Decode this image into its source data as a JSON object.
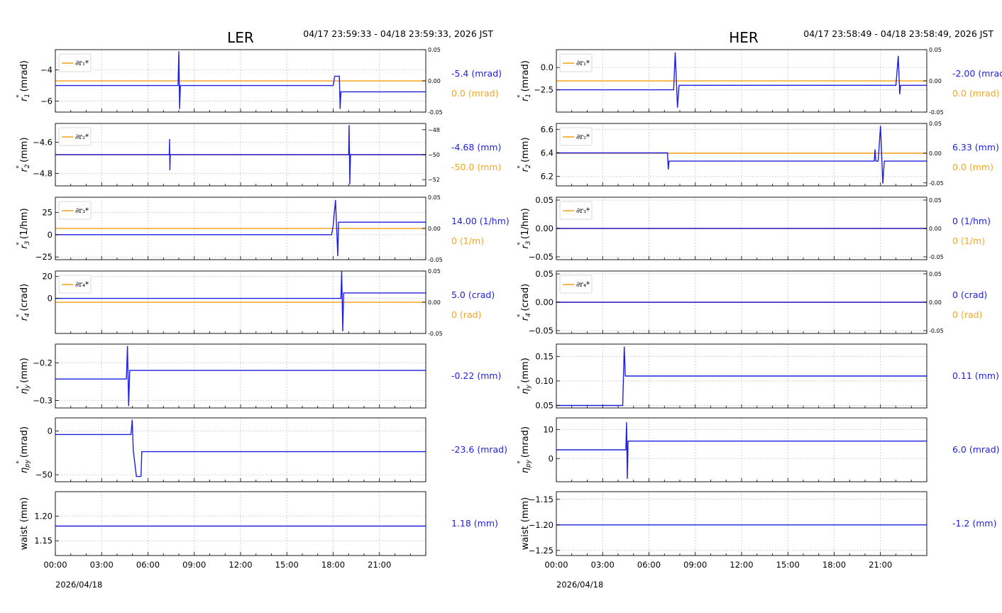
{
  "colors": {
    "blue": "#1f1fe0",
    "orange": "#f5a623",
    "grid": "#c8c8c8"
  },
  "x_ticks": [
    "00:00",
    "03:00",
    "06:00",
    "09:00",
    "12:00",
    "15:00",
    "18:00",
    "21:00"
  ],
  "chart_data": [
    {
      "type": "line",
      "title": "LER",
      "time_range": "04/17 23:59:33 - 04/18 23:59:33, 2026 JST",
      "date_label": "2026/04/18",
      "panels": [
        {
          "ylabel_sym": "r",
          "ylabel_sub": "1",
          "ylabel_unit": "(mrad)",
          "ylim": [
            -6.7,
            -2.7
          ],
          "yticks": [
            -4,
            -6
          ],
          "right": {
            "ylim": [
              -0.05,
              0.05
            ],
            "ticks": [
              0.05,
              0.0,
              -0.05
            ],
            "tick_labels": [
              "0.05",
              "0.00",
              "-0.05"
            ]
          },
          "legend": "∂r₁*",
          "side_blue": "-5.4 (mrad)",
          "side_orange": "0.0 (mrad)",
          "orange": {
            "axis": "right",
            "value": 0.0
          },
          "series": [
            [
              0,
              -5
            ],
            [
              7.95,
              -5
            ],
            [
              8.0,
              -2.8
            ],
            [
              8.05,
              -6.5
            ],
            [
              8.1,
              -5
            ],
            [
              18.0,
              -5
            ],
            [
              18.1,
              -4.4
            ],
            [
              18.4,
              -4.4
            ],
            [
              18.45,
              -6.5
            ],
            [
              18.5,
              -5.4
            ],
            [
              24,
              -5.4
            ]
          ]
        },
        {
          "ylabel_sym": "r",
          "ylabel_sub": "2",
          "ylabel_unit": "(mm)",
          "ylim": [
            -4.88,
            -4.48
          ],
          "yticks": [
            -4.6,
            -4.8
          ],
          "right": {
            "ylim": [
              -52.5,
              -47.5
            ],
            "ticks": [
              -48,
              -50,
              -52
            ],
            "tick_labels": [
              "−48",
              "−50",
              "−52"
            ]
          },
          "legend": "∂r₂*",
          "side_blue": "-4.68 (mm)",
          "side_orange": "-50.0 (mm)",
          "orange": {
            "axis": "right",
            "value": -50.0
          },
          "series": [
            [
              0,
              -4.68
            ],
            [
              7.38,
              -4.68
            ],
            [
              7.4,
              -4.58
            ],
            [
              7.42,
              -4.78
            ],
            [
              7.45,
              -4.68
            ],
            [
              19.0,
              -4.68
            ],
            [
              19.03,
              -4.49
            ],
            [
              19.08,
              -4.87
            ],
            [
              19.12,
              -4.68
            ],
            [
              24,
              -4.68
            ]
          ]
        },
        {
          "ylabel_sym": "r",
          "ylabel_sub": "3",
          "ylabel_unit": "(1/hm)",
          "ylim": [
            -28,
            42
          ],
          "yticks": [
            25,
            0,
            -25
          ],
          "right": {
            "ylim": [
              -0.05,
              0.05
            ],
            "ticks": [
              0.05,
              0.0,
              -0.05
            ],
            "tick_labels": [
              "0.05",
              "0.00",
              "-0.05"
            ]
          },
          "legend": "∂r₃*",
          "side_blue": "14.00 (1/hm)",
          "side_orange": "0 (1/m)",
          "orange": {
            "axis": "right",
            "value": 0.0
          },
          "series": [
            [
              0,
              0
            ],
            [
              17.9,
              0
            ],
            [
              18.0,
              10
            ],
            [
              18.15,
              39
            ],
            [
              18.3,
              -24
            ],
            [
              18.35,
              14
            ],
            [
              24,
              14
            ]
          ]
        },
        {
          "ylabel_sym": "r",
          "ylabel_sub": "4",
          "ylabel_unit": "(crad)",
          "ylim": [
            -32,
            25
          ],
          "yticks": [
            20,
            0
          ],
          "right": {
            "ylim": [
              -0.05,
              0.05
            ],
            "ticks": [
              0.05,
              0.0,
              -0.05
            ],
            "tick_labels": [
              "0.05",
              "0.00",
              "-0.05"
            ]
          },
          "legend": "∂r₄*",
          "side_blue": "5.0 (crad)",
          "side_orange": "0 (rad)",
          "orange": {
            "axis": "right",
            "value": 0.0
          },
          "series": [
            [
              0,
              0
            ],
            [
              18.5,
              0
            ],
            [
              18.55,
              25
            ],
            [
              18.62,
              -30
            ],
            [
              18.68,
              5
            ],
            [
              24,
              5
            ]
          ]
        },
        {
          "ylabel_sym": "η",
          "ylabel_sub": "y",
          "ylabel_unit": "(mm)",
          "ylim": [
            -0.32,
            -0.15
          ],
          "yticks": [
            -0.2,
            -0.3
          ],
          "right": null,
          "legend": "",
          "side_blue": "-0.22 (mm)",
          "side_orange": "",
          "orange": null,
          "series": [
            [
              0,
              -0.243
            ],
            [
              4.6,
              -0.243
            ],
            [
              4.67,
              -0.155
            ],
            [
              4.75,
              -0.315
            ],
            [
              4.82,
              -0.22
            ],
            [
              24,
              -0.22
            ]
          ]
        },
        {
          "ylabel_sym": "η",
          "ylabel_sub": "py",
          "ylabel_unit": "(mrad)",
          "ylim": [
            -58,
            15
          ],
          "yticks": [
            0,
            -50
          ],
          "right": null,
          "legend": "",
          "side_blue": "-23.6 (mrad)",
          "side_orange": "",
          "orange": null,
          "series": [
            [
              0,
              -4
            ],
            [
              4.9,
              -4
            ],
            [
              4.98,
              13
            ],
            [
              5.05,
              -22
            ],
            [
              5.25,
              -52
            ],
            [
              5.55,
              -52
            ],
            [
              5.6,
              -23.6
            ],
            [
              24,
              -23.6
            ]
          ]
        },
        {
          "ylabel_sym": "waist",
          "ylabel_sub": "",
          "ylabel_unit": "(mm)",
          "ylim": [
            1.12,
            1.25
          ],
          "yticks": [
            1.2,
            1.15
          ],
          "right": null,
          "legend": "",
          "side_blue": "1.18 (mm)",
          "side_orange": "",
          "orange": null,
          "series": [
            [
              0,
              1.18
            ],
            [
              24,
              1.18
            ]
          ]
        }
      ]
    },
    {
      "type": "line",
      "title": "HER",
      "time_range": "04/17 23:58:49 - 04/18 23:58:49, 2026 JST",
      "date_label": "2026/04/18",
      "panels": [
        {
          "ylabel_sym": "r",
          "ylabel_sub": "1",
          "ylabel_unit": "(mrad)",
          "ylim": [
            -5.0,
            2.0
          ],
          "yticks": [
            0.0,
            -2.5
          ],
          "right": {
            "ylim": [
              -0.05,
              0.05
            ],
            "ticks": [
              0.05,
              0.0,
              -0.05
            ],
            "tick_labels": [
              "0.05",
              "0.00",
              "-0.05"
            ]
          },
          "legend": "∂r₁*",
          "side_blue": "-2.00 (mrad)",
          "side_orange": "0.0 (mrad)",
          "orange": {
            "axis": "right",
            "value": 0.0
          },
          "series": [
            [
              0,
              -2.5
            ],
            [
              7.6,
              -2.5
            ],
            [
              7.7,
              1.7
            ],
            [
              7.85,
              -4.5
            ],
            [
              7.95,
              -2.0
            ],
            [
              22.0,
              -2.0
            ],
            [
              22.15,
              1.3
            ],
            [
              22.25,
              -3.0
            ],
            [
              22.3,
              -2.0
            ],
            [
              24,
              -2.0
            ]
          ]
        },
        {
          "ylabel_sym": "r",
          "ylabel_sub": "2",
          "ylabel_unit": "(mm)",
          "ylim": [
            6.12,
            6.65
          ],
          "yticks": [
            6.6,
            6.4,
            6.2
          ],
          "right": {
            "ylim": [
              -0.055,
              0.05
            ],
            "ticks": [
              0.05,
              0.0,
              -0.05
            ],
            "tick_labels": [
              "0.05",
              "0.00",
              "-0.05"
            ]
          },
          "legend": "∂r₂*",
          "side_blue": "6.33 (mm)",
          "side_orange": "0.0 (mm)",
          "orange": {
            "axis": "right",
            "value": 0.0
          },
          "series": [
            [
              0,
              6.4
            ],
            [
              7.2,
              6.4
            ],
            [
              7.25,
              6.26
            ],
            [
              7.3,
              6.33
            ],
            [
              20.6,
              6.33
            ],
            [
              20.65,
              6.43
            ],
            [
              20.7,
              6.33
            ],
            [
              20.85,
              6.33
            ],
            [
              21.0,
              6.63
            ],
            [
              21.15,
              6.14
            ],
            [
              21.25,
              6.33
            ],
            [
              24,
              6.33
            ]
          ]
        },
        {
          "ylabel_sym": "r",
          "ylabel_sub": "3",
          "ylabel_unit": "(1/hm)",
          "ylim": [
            -0.055,
            0.055
          ],
          "yticks": [
            0.05,
            0.0,
            -0.05
          ],
          "right": {
            "ylim": [
              -0.055,
              0.055
            ],
            "ticks": [
              0.05,
              0.0,
              -0.05
            ],
            "tick_labels": [
              "0.05",
              "0.00",
              "-0.05"
            ]
          },
          "legend": "∂r₃*",
          "side_blue": "0 (1/hm)",
          "side_orange": "0 (1/m)",
          "orange": {
            "axis": "right",
            "value": 0.0
          },
          "series": [
            [
              0,
              0
            ],
            [
              24,
              0
            ]
          ]
        },
        {
          "ylabel_sym": "r",
          "ylabel_sub": "4",
          "ylabel_unit": "(crad)",
          "ylim": [
            -0.055,
            0.055
          ],
          "yticks": [
            0.05,
            0.0,
            -0.05
          ],
          "right": {
            "ylim": [
              -0.055,
              0.055
            ],
            "ticks": [
              0.05,
              0.0,
              -0.05
            ],
            "tick_labels": [
              "0.05",
              "0.00",
              "-0.05"
            ]
          },
          "legend": "∂r₄*",
          "side_blue": "0 (crad)",
          "side_orange": "0 (rad)",
          "orange": {
            "axis": "right",
            "value": 0.0
          },
          "series": [
            [
              0,
              0
            ],
            [
              24,
              0
            ]
          ]
        },
        {
          "ylabel_sym": "η",
          "ylabel_sub": "y",
          "ylabel_unit": "(mm)",
          "ylim": [
            0.045,
            0.175
          ],
          "yticks": [
            0.15,
            0.1,
            0.05
          ],
          "right": null,
          "legend": "",
          "side_blue": "0.11 (mm)",
          "side_orange": "",
          "orange": null,
          "series": [
            [
              0,
              0.05
            ],
            [
              4.3,
              0.05
            ],
            [
              4.4,
              0.17
            ],
            [
              4.47,
              0.11
            ],
            [
              24,
              0.11
            ]
          ]
        },
        {
          "ylabel_sym": "η",
          "ylabel_sub": "py",
          "ylabel_unit": "(mrad)",
          "ylim": [
            -8,
            14
          ],
          "yticks": [
            10,
            0
          ],
          "right": null,
          "legend": "",
          "side_blue": "6.0 (mrad)",
          "side_orange": "",
          "orange": null,
          "series": [
            [
              0,
              3
            ],
            [
              4.5,
              3
            ],
            [
              4.55,
              12.5
            ],
            [
              4.6,
              -7
            ],
            [
              4.65,
              6
            ],
            [
              24,
              6
            ]
          ]
        },
        {
          "ylabel_sym": "waist",
          "ylabel_sub": "",
          "ylabel_unit": "(mm)",
          "ylim": [
            -1.26,
            -1.135
          ],
          "yticks": [
            -1.15,
            -1.2,
            -1.25
          ],
          "right": null,
          "legend": "",
          "side_blue": "-1.2 (mm)",
          "side_orange": "",
          "orange": null,
          "series": [
            [
              0,
              -1.2
            ],
            [
              24,
              -1.2
            ]
          ]
        }
      ]
    }
  ]
}
